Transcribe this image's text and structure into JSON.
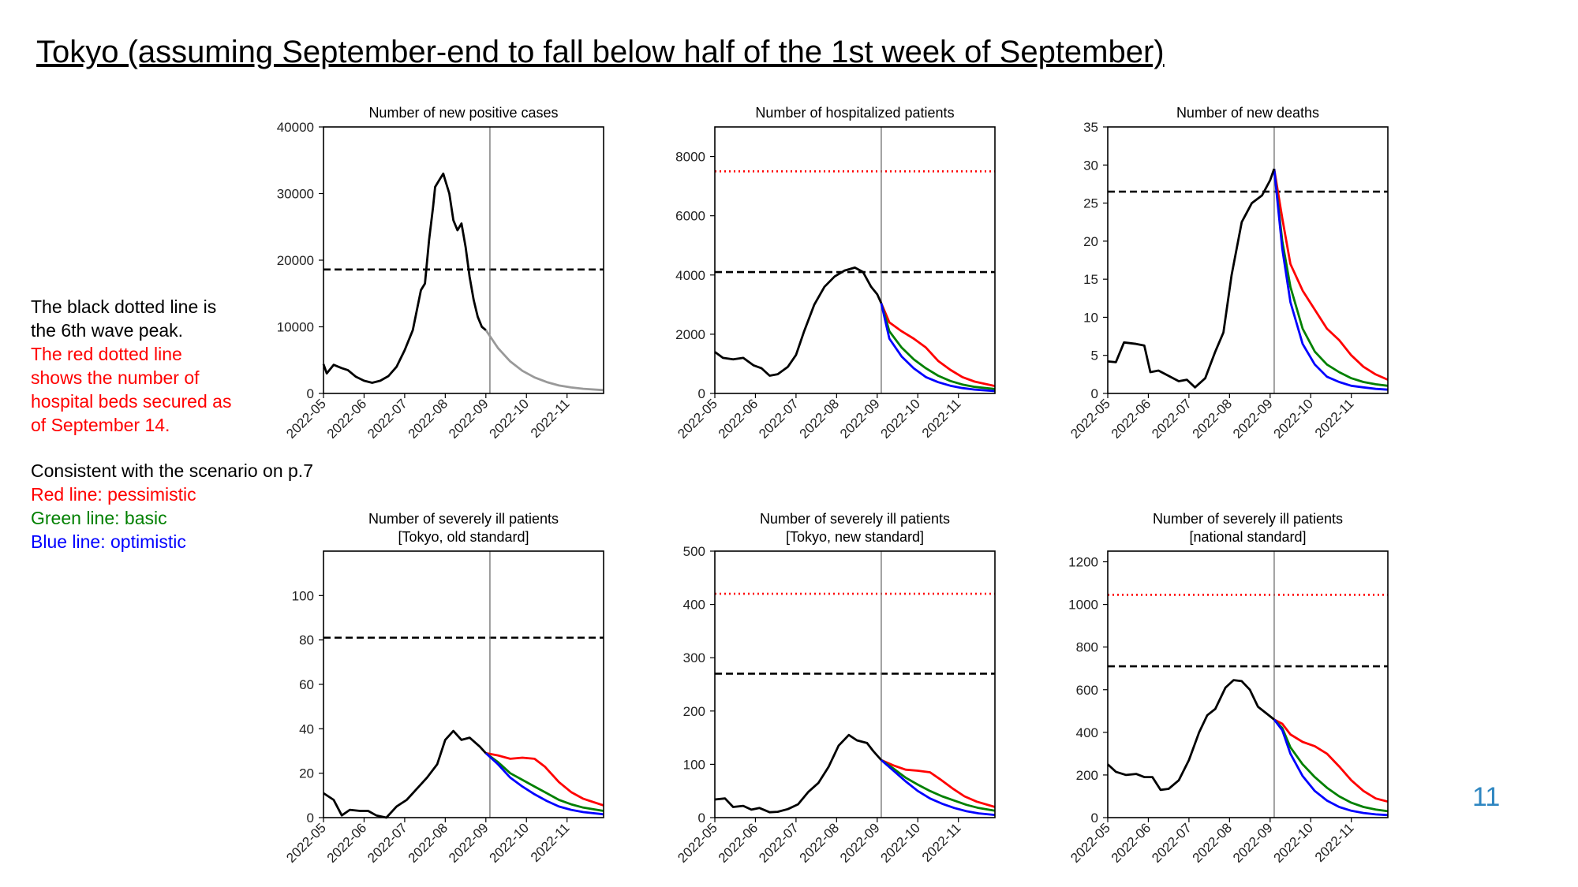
{
  "slide": {
    "title": "Tokyo (assuming September-end to fall below half of the 1st week of September)",
    "page_number": "11"
  },
  "notes": {
    "line1": "The black dotted line is",
    "line2": "the 6th wave peak.",
    "red1": "The red dotted line",
    "red2": "shows the number of",
    "red3": "hospital beds secured as",
    "red4": "of September 14.",
    "consistent": "Consistent with the scenario on p.7",
    "red_line": "Red line: pessimistic",
    "green_line": "Green line: basic",
    "blue_line": "Blue line: optimistic"
  },
  "colors": {
    "observed": "#000000",
    "projection_single": "#999999",
    "pessimistic": "#ff0000",
    "basic": "#008000",
    "optimistic": "#0000ff",
    "beds": "#ff0000",
    "wave6": "#000000"
  },
  "chart_data": [
    {
      "type": "line",
      "title": [
        "Number of new positive cases"
      ],
      "x_ticks": [
        "2022-05",
        "2022-06",
        "2022-07",
        "2022-08",
        "2022-09",
        "2022-10",
        "2022-11"
      ],
      "ylim": [
        0,
        40000
      ],
      "y_ticks": [
        0,
        10000,
        20000,
        30000,
        40000
      ],
      "wave6_peak": 18600,
      "beds": null,
      "observed": [
        [
          0,
          4400
        ],
        [
          0.08,
          3000
        ],
        [
          0.25,
          4300
        ],
        [
          0.45,
          3800
        ],
        [
          0.6,
          3500
        ],
        [
          0.8,
          2500
        ],
        [
          1.0,
          1900
        ],
        [
          1.2,
          1600
        ],
        [
          1.4,
          1900
        ],
        [
          1.6,
          2600
        ],
        [
          1.8,
          4000
        ],
        [
          2.0,
          6500
        ],
        [
          2.2,
          9500
        ],
        [
          2.4,
          15500
        ],
        [
          2.5,
          16500
        ],
        [
          2.6,
          23000
        ],
        [
          2.7,
          28000
        ],
        [
          2.75,
          31000
        ],
        [
          2.85,
          32000
        ],
        [
          2.95,
          33000
        ],
        [
          3.0,
          32000
        ],
        [
          3.1,
          30000
        ],
        [
          3.2,
          26000
        ],
        [
          3.3,
          24500
        ],
        [
          3.4,
          25500
        ],
        [
          3.5,
          22000
        ],
        [
          3.6,
          17500
        ],
        [
          3.7,
          14000
        ],
        [
          3.8,
          11500
        ],
        [
          3.9,
          10000
        ],
        [
          4.0,
          9500
        ]
      ],
      "projection_single": [
        [
          4.0,
          9500
        ],
        [
          4.3,
          6800
        ],
        [
          4.6,
          4800
        ],
        [
          4.9,
          3400
        ],
        [
          5.2,
          2400
        ],
        [
          5.5,
          1700
        ],
        [
          5.8,
          1200
        ],
        [
          6.1,
          900
        ],
        [
          6.4,
          700
        ],
        [
          6.9,
          500
        ]
      ],
      "pessimistic": null,
      "basic": null,
      "optimistic": null
    },
    {
      "type": "line",
      "title": [
        "Number of hospitalized patients"
      ],
      "x_ticks": [
        "2022-05",
        "2022-06",
        "2022-07",
        "2022-08",
        "2022-09",
        "2022-10",
        "2022-11"
      ],
      "ylim": [
        0,
        9000
      ],
      "y_ticks": [
        0,
        2000,
        4000,
        6000,
        8000
      ],
      "wave6_peak": 4100,
      "beds": 7500,
      "observed": [
        [
          0,
          1400
        ],
        [
          0.2,
          1200
        ],
        [
          0.45,
          1150
        ],
        [
          0.7,
          1200
        ],
        [
          0.95,
          950
        ],
        [
          1.15,
          850
        ],
        [
          1.35,
          600
        ],
        [
          1.55,
          650
        ],
        [
          1.8,
          900
        ],
        [
          2.0,
          1300
        ],
        [
          2.2,
          2100
        ],
        [
          2.45,
          3000
        ],
        [
          2.7,
          3600
        ],
        [
          2.95,
          3950
        ],
        [
          3.2,
          4150
        ],
        [
          3.45,
          4250
        ],
        [
          3.65,
          4100
        ],
        [
          3.85,
          3600
        ],
        [
          4.0,
          3350
        ],
        [
          4.1,
          3050
        ]
      ],
      "projection_single": null,
      "pessimistic": [
        [
          4.1,
          3050
        ],
        [
          4.3,
          2400
        ],
        [
          4.6,
          2100
        ],
        [
          4.9,
          1850
        ],
        [
          5.2,
          1550
        ],
        [
          5.5,
          1100
        ],
        [
          5.8,
          800
        ],
        [
          6.1,
          550
        ],
        [
          6.4,
          400
        ],
        [
          6.9,
          250
        ]
      ],
      "basic": [
        [
          4.1,
          3050
        ],
        [
          4.3,
          2100
        ],
        [
          4.6,
          1550
        ],
        [
          4.9,
          1150
        ],
        [
          5.2,
          850
        ],
        [
          5.5,
          600
        ],
        [
          5.8,
          420
        ],
        [
          6.1,
          300
        ],
        [
          6.4,
          220
        ],
        [
          6.9,
          150
        ]
      ],
      "optimistic": [
        [
          4.1,
          3050
        ],
        [
          4.3,
          1850
        ],
        [
          4.6,
          1250
        ],
        [
          4.9,
          850
        ],
        [
          5.2,
          550
        ],
        [
          5.5,
          380
        ],
        [
          5.8,
          260
        ],
        [
          6.1,
          180
        ],
        [
          6.4,
          130
        ],
        [
          6.9,
          80
        ]
      ]
    },
    {
      "type": "line",
      "title": [
        "Number of new deaths"
      ],
      "x_ticks": [
        "2022-05",
        "2022-06",
        "2022-07",
        "2022-08",
        "2022-09",
        "2022-10",
        "2022-11"
      ],
      "ylim": [
        0,
        35
      ],
      "y_ticks": [
        0,
        5,
        10,
        15,
        20,
        25,
        30,
        35
      ],
      "wave6_peak": 26.5,
      "beds": null,
      "observed": [
        [
          0,
          4.2
        ],
        [
          0.2,
          4.1
        ],
        [
          0.4,
          6.7
        ],
        [
          0.7,
          6.5
        ],
        [
          0.9,
          6.3
        ],
        [
          1.05,
          2.8
        ],
        [
          1.25,
          3.0
        ],
        [
          1.5,
          2.3
        ],
        [
          1.75,
          1.6
        ],
        [
          1.95,
          1.8
        ],
        [
          2.15,
          0.8
        ],
        [
          2.4,
          2.0
        ],
        [
          2.65,
          5.5
        ],
        [
          2.85,
          8.0
        ],
        [
          3.05,
          15.5
        ],
        [
          3.3,
          22.5
        ],
        [
          3.55,
          25.0
        ],
        [
          3.8,
          26.0
        ],
        [
          4.0,
          28.0
        ],
        [
          4.1,
          29.5
        ]
      ],
      "projection_single": null,
      "pessimistic": [
        [
          4.1,
          29.5
        ],
        [
          4.3,
          23
        ],
        [
          4.5,
          17
        ],
        [
          4.8,
          13.5
        ],
        [
          5.1,
          11
        ],
        [
          5.4,
          8.5
        ],
        [
          5.7,
          7
        ],
        [
          6.0,
          5
        ],
        [
          6.3,
          3.5
        ],
        [
          6.6,
          2.5
        ],
        [
          6.9,
          1.8
        ]
      ],
      "basic": [
        [
          4.1,
          29.5
        ],
        [
          4.3,
          20
        ],
        [
          4.5,
          14
        ],
        [
          4.8,
          8.5
        ],
        [
          5.1,
          5.5
        ],
        [
          5.4,
          3.8
        ],
        [
          5.7,
          2.8
        ],
        [
          6.0,
          2
        ],
        [
          6.3,
          1.5
        ],
        [
          6.6,
          1.2
        ],
        [
          6.9,
          1.0
        ]
      ],
      "optimistic": [
        [
          4.1,
          29.5
        ],
        [
          4.3,
          19
        ],
        [
          4.5,
          12
        ],
        [
          4.8,
          6.5
        ],
        [
          5.1,
          3.8
        ],
        [
          5.4,
          2.2
        ],
        [
          5.7,
          1.5
        ],
        [
          6.0,
          1.0
        ],
        [
          6.3,
          0.8
        ],
        [
          6.6,
          0.6
        ],
        [
          6.9,
          0.5
        ]
      ]
    },
    {
      "type": "line",
      "title": [
        "Number of severely ill patients",
        "[Tokyo, old standard]"
      ],
      "x_ticks": [
        "2022-05",
        "2022-06",
        "2022-07",
        "2022-08",
        "2022-09",
        "2022-10",
        "2022-11"
      ],
      "ylim": [
        0,
        120
      ],
      "y_ticks": [
        0,
        20,
        40,
        60,
        80,
        100
      ],
      "wave6_peak": 81,
      "beds": null,
      "observed": [
        [
          0,
          11
        ],
        [
          0.25,
          8
        ],
        [
          0.45,
          1
        ],
        [
          0.65,
          3.5
        ],
        [
          0.9,
          3
        ],
        [
          1.1,
          3
        ],
        [
          1.3,
          1
        ],
        [
          1.55,
          0
        ],
        [
          1.8,
          5
        ],
        [
          2.05,
          8
        ],
        [
          2.3,
          13
        ],
        [
          2.55,
          18
        ],
        [
          2.8,
          24
        ],
        [
          3.0,
          35
        ],
        [
          3.2,
          39
        ],
        [
          3.4,
          35
        ],
        [
          3.6,
          36
        ],
        [
          3.85,
          32
        ],
        [
          4.0,
          29
        ]
      ],
      "projection_single": null,
      "pessimistic": [
        [
          4.0,
          29
        ],
        [
          4.3,
          28
        ],
        [
          4.6,
          26.5
        ],
        [
          4.9,
          27
        ],
        [
          5.2,
          26.5
        ],
        [
          5.45,
          23
        ],
        [
          5.8,
          16
        ],
        [
          6.1,
          11.5
        ],
        [
          6.4,
          8.5
        ],
        [
          6.9,
          5.5
        ]
      ],
      "basic": [
        [
          4.0,
          29
        ],
        [
          4.3,
          25
        ],
        [
          4.6,
          20
        ],
        [
          4.9,
          17
        ],
        [
          5.2,
          14
        ],
        [
          5.5,
          11
        ],
        [
          5.8,
          8
        ],
        [
          6.1,
          6
        ],
        [
          6.4,
          4.5
        ],
        [
          6.9,
          3
        ]
      ],
      "optimistic": [
        [
          4.0,
          29
        ],
        [
          4.3,
          24
        ],
        [
          4.6,
          18
        ],
        [
          4.9,
          14
        ],
        [
          5.2,
          10.5
        ],
        [
          5.5,
          7.5
        ],
        [
          5.8,
          5
        ],
        [
          6.1,
          3.5
        ],
        [
          6.4,
          2.5
        ],
        [
          6.9,
          1.5
        ]
      ]
    },
    {
      "type": "line",
      "title": [
        "Number of severely ill patients",
        "[Tokyo, new standard]"
      ],
      "x_ticks": [
        "2022-05",
        "2022-06",
        "2022-07",
        "2022-08",
        "2022-09",
        "2022-10",
        "2022-11"
      ],
      "ylim": [
        0,
        500
      ],
      "y_ticks": [
        0,
        100,
        200,
        300,
        400,
        500
      ],
      "wave6_peak": 270,
      "beds": 420,
      "observed": [
        [
          0,
          34
        ],
        [
          0.25,
          36
        ],
        [
          0.45,
          20
        ],
        [
          0.7,
          22
        ],
        [
          0.9,
          15
        ],
        [
          1.1,
          18
        ],
        [
          1.35,
          10
        ],
        [
          1.55,
          11
        ],
        [
          1.8,
          16
        ],
        [
          2.05,
          25
        ],
        [
          2.3,
          48
        ],
        [
          2.55,
          65
        ],
        [
          2.8,
          95
        ],
        [
          3.05,
          135
        ],
        [
          3.3,
          155
        ],
        [
          3.5,
          145
        ],
        [
          3.75,
          140
        ],
        [
          3.9,
          125
        ],
        [
          4.1,
          108
        ]
      ],
      "projection_single": null,
      "pessimistic": [
        [
          4.1,
          108
        ],
        [
          4.4,
          98
        ],
        [
          4.7,
          90
        ],
        [
          5.0,
          88
        ],
        [
          5.3,
          85
        ],
        [
          5.55,
          72
        ],
        [
          5.85,
          55
        ],
        [
          6.15,
          40
        ],
        [
          6.45,
          30
        ],
        [
          6.9,
          20
        ]
      ],
      "basic": [
        [
          4.1,
          108
        ],
        [
          4.4,
          92
        ],
        [
          4.7,
          75
        ],
        [
          5.0,
          62
        ],
        [
          5.3,
          50
        ],
        [
          5.6,
          40
        ],
        [
          5.9,
          32
        ],
        [
          6.2,
          24
        ],
        [
          6.5,
          18
        ],
        [
          6.9,
          13
        ]
      ],
      "optimistic": [
        [
          4.1,
          108
        ],
        [
          4.4,
          88
        ],
        [
          4.7,
          68
        ],
        [
          5.0,
          50
        ],
        [
          5.3,
          36
        ],
        [
          5.6,
          26
        ],
        [
          5.9,
          18
        ],
        [
          6.2,
          12
        ],
        [
          6.5,
          8
        ],
        [
          6.9,
          5
        ]
      ]
    },
    {
      "type": "line",
      "title": [
        "Number of severely ill patients",
        "[national standard]"
      ],
      "x_ticks": [
        "2022-05",
        "2022-06",
        "2022-07",
        "2022-08",
        "2022-09",
        "2022-10",
        "2022-11"
      ],
      "ylim": [
        0,
        1250
      ],
      "y_ticks": [
        0,
        200,
        400,
        600,
        800,
        1000,
        1200
      ],
      "wave6_peak": 710,
      "beds": 1045,
      "observed": [
        [
          0,
          250
        ],
        [
          0.2,
          215
        ],
        [
          0.45,
          200
        ],
        [
          0.7,
          205
        ],
        [
          0.9,
          190
        ],
        [
          1.1,
          190
        ],
        [
          1.3,
          130
        ],
        [
          1.5,
          135
        ],
        [
          1.75,
          175
        ],
        [
          2.0,
          270
        ],
        [
          2.25,
          400
        ],
        [
          2.45,
          480
        ],
        [
          2.65,
          510
        ],
        [
          2.9,
          610
        ],
        [
          3.1,
          645
        ],
        [
          3.3,
          640
        ],
        [
          3.5,
          600
        ],
        [
          3.7,
          520
        ],
        [
          3.9,
          490
        ],
        [
          4.1,
          460
        ]
      ],
      "projection_single": null,
      "pessimistic": [
        [
          4.1,
          460
        ],
        [
          4.3,
          440
        ],
        [
          4.5,
          390
        ],
        [
          4.8,
          355
        ],
        [
          5.1,
          335
        ],
        [
          5.4,
          300
        ],
        [
          5.7,
          240
        ],
        [
          6.0,
          175
        ],
        [
          6.3,
          125
        ],
        [
          6.6,
          90
        ],
        [
          6.9,
          75
        ]
      ],
      "basic": [
        [
          4.1,
          460
        ],
        [
          4.3,
          420
        ],
        [
          4.5,
          330
        ],
        [
          4.8,
          250
        ],
        [
          5.1,
          190
        ],
        [
          5.4,
          140
        ],
        [
          5.7,
          100
        ],
        [
          6.0,
          70
        ],
        [
          6.3,
          50
        ],
        [
          6.6,
          38
        ],
        [
          6.9,
          30
        ]
      ],
      "optimistic": [
        [
          4.1,
          460
        ],
        [
          4.3,
          410
        ],
        [
          4.5,
          300
        ],
        [
          4.8,
          195
        ],
        [
          5.1,
          125
        ],
        [
          5.4,
          80
        ],
        [
          5.7,
          50
        ],
        [
          6.0,
          32
        ],
        [
          6.3,
          22
        ],
        [
          6.6,
          15
        ],
        [
          6.9,
          12
        ]
      ]
    }
  ]
}
